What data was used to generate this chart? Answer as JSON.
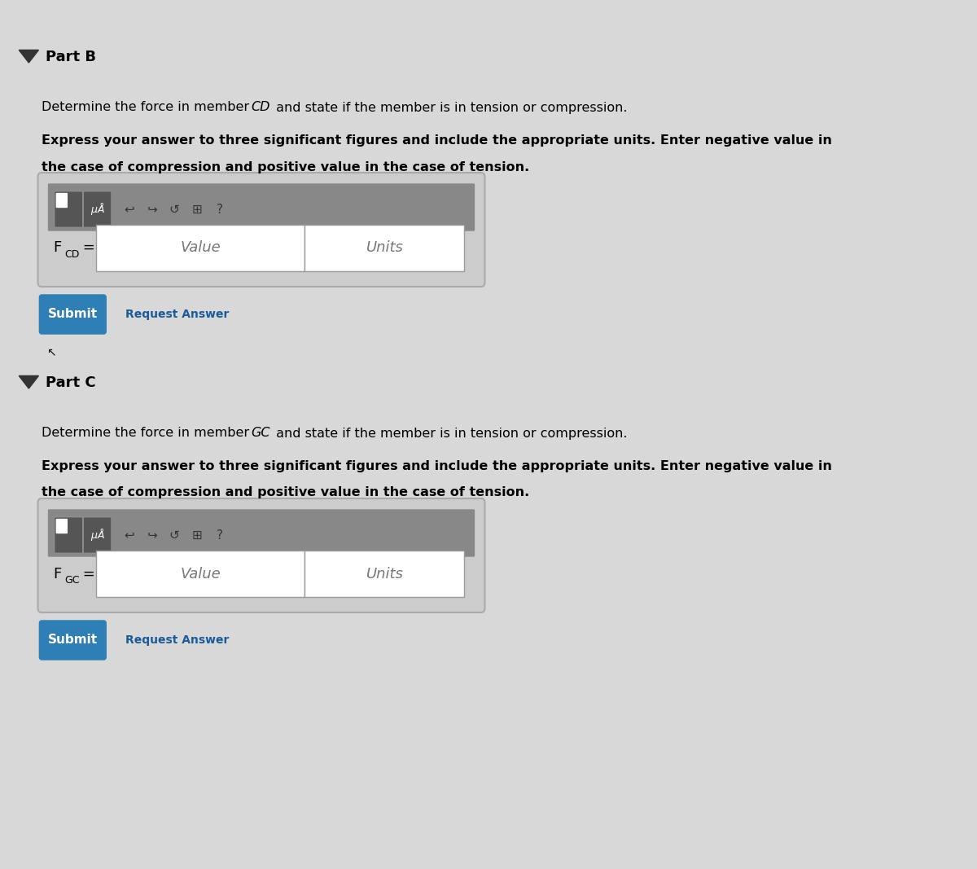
{
  "bg_color": "#d8d8d8",
  "page_bg": "#e8e8e8",
  "part_b_label": "Part B",
  "part_c_label": "Part C",
  "triangle_color": "#333333",
  "part_b_desc1": "Determine the force in member ",
  "part_b_CD": "CD",
  "part_b_desc2": " and state if the member is in tension or compression.",
  "part_b_bold": "Express your answer to three significant figures and include the appropriate units. Enter negative value in\nthe case of compression and positive value in the case of tension.",
  "fcd_label": "F",
  "fcd_sub": "CD",
  "fcd_eq": " = ",
  "fcd_value": "Value",
  "fcd_units": "Units",
  "part_c_desc1": "Determine the force in member ",
  "part_c_GC": "GC",
  "part_c_desc2": " and state if the member is in tension or compression.",
  "part_c_bold": "Express your answer to three significant figures and include the appropriate units. Enter negative value in\nthe case of compression and positive value in the case of tension.",
  "fgc_label": "F",
  "fgc_sub": "GC",
  "fgc_eq": " = ",
  "fgc_value": "Value",
  "fgc_units": "Units",
  "submit_bg": "#2e7fb5",
  "submit_text_color": "#ffffff",
  "submit_label": "Submit",
  "request_answer_label": "Request Answer",
  "request_answer_color": "#1a5a99",
  "toolbar_bg": "#888888",
  "toolbar_dark": "#555555",
  "input_box_bg": "#ffffff",
  "outer_box_bg": "#cccccc",
  "outer_box_border": "#aaaaaa"
}
